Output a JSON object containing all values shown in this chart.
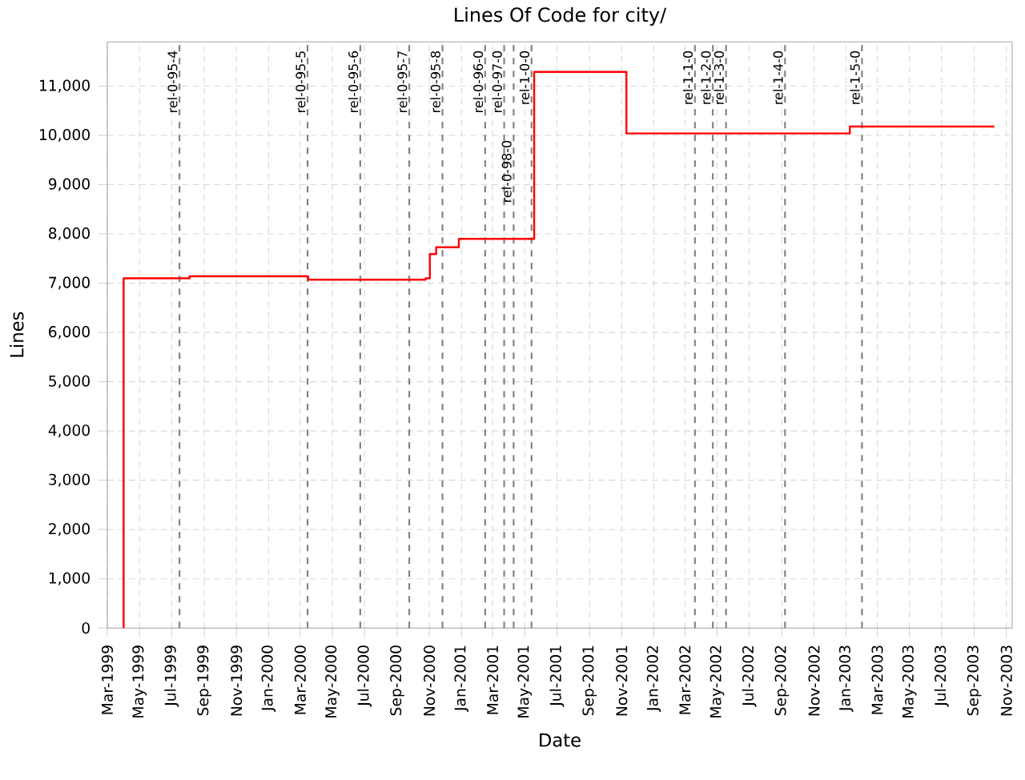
{
  "chart_data": {
    "type": "step",
    "title": "Lines Of Code for city/",
    "xlabel": "Date",
    "ylabel": "Lines",
    "x": [
      "1999-04-01",
      "1999-04-01",
      "1999-08-04",
      "2000-03-16",
      "2000-10-25",
      "2000-11-02",
      "2000-11-14",
      "2000-12-27",
      "2001-05-19",
      "2001-11-10",
      "2003-01-08",
      "2003-10-09"
    ],
    "series": [
      {
        "color": "#ff0000",
        "values": [
          0,
          7100,
          7140,
          7070,
          7100,
          7590,
          7730,
          7900,
          11290,
          10040,
          10180,
          10180
        ]
      }
    ],
    "xlim": [
      "1999-03-01",
      "2003-11-12"
    ],
    "ylim": [
      0,
      11900
    ],
    "xticks": [
      {
        "value": "1999-03",
        "label": "Mar-1999"
      },
      {
        "value": "1999-05",
        "label": "May-1999"
      },
      {
        "value": "1999-07",
        "label": "Jul-1999"
      },
      {
        "value": "1999-09",
        "label": "Sep-1999"
      },
      {
        "value": "1999-11",
        "label": "Nov-1999"
      },
      {
        "value": "2000-01",
        "label": "Jan-2000"
      },
      {
        "value": "2000-03",
        "label": "Mar-2000"
      },
      {
        "value": "2000-05",
        "label": "May-2000"
      },
      {
        "value": "2000-07",
        "label": "Jul-2000"
      },
      {
        "value": "2000-09",
        "label": "Sep-2000"
      },
      {
        "value": "2000-11",
        "label": "Nov-2000"
      },
      {
        "value": "2001-01",
        "label": "Jan-2001"
      },
      {
        "value": "2001-03",
        "label": "Mar-2001"
      },
      {
        "value": "2001-05",
        "label": "May-2001"
      },
      {
        "value": "2001-07",
        "label": "Jul-2001"
      },
      {
        "value": "2001-09",
        "label": "Sep-2001"
      },
      {
        "value": "2001-11",
        "label": "Nov-2001"
      },
      {
        "value": "2002-01",
        "label": "Jan-2002"
      },
      {
        "value": "2002-03",
        "label": "Mar-2002"
      },
      {
        "value": "2002-05",
        "label": "May-2002"
      },
      {
        "value": "2002-07",
        "label": "Jul-2002"
      },
      {
        "value": "2002-09",
        "label": "Sep-2002"
      },
      {
        "value": "2002-11",
        "label": "Nov-2002"
      },
      {
        "value": "2003-01",
        "label": "Jan-2003"
      },
      {
        "value": "2003-03",
        "label": "Mar-2003"
      },
      {
        "value": "2003-05",
        "label": "May-2003"
      },
      {
        "value": "2003-07",
        "label": "Jul-2003"
      },
      {
        "value": "2003-09",
        "label": "Sep-2003"
      },
      {
        "value": "2003-11",
        "label": "Nov-2003"
      }
    ],
    "yticks": [
      0,
      {
        "value": 1000,
        "label": "1,000"
      },
      {
        "value": 2000,
        "label": "2,000"
      },
      {
        "value": 3000,
        "label": "3,000"
      },
      {
        "value": 4000,
        "label": "4,000"
      },
      {
        "value": 5000,
        "label": "5,000"
      },
      {
        "value": 6000,
        "label": "6,000"
      },
      {
        "value": 7000,
        "label": "7,000"
      },
      {
        "value": 8000,
        "label": "8,000"
      },
      {
        "value": 9000,
        "label": "9,000"
      },
      {
        "value": 10000,
        "label": "10,000"
      },
      {
        "value": 11000,
        "label": "11,000"
      }
    ],
    "ref_lines": [
      {
        "axis": "x",
        "value": "1999-07-16",
        "label": "rel-0-95-4",
        "color": "#808080",
        "line_style": "dashed"
      },
      {
        "axis": "x",
        "value": "2000-03-15",
        "label": "rel-0-95-5",
        "color": "#808080",
        "line_style": "dashed"
      },
      {
        "axis": "x",
        "value": "2000-06-23",
        "label": "rel-0-95-6",
        "color": "#808080",
        "line_style": "dashed"
      },
      {
        "axis": "x",
        "value": "2000-09-24",
        "label": "rel-0-95-7",
        "color": "#808080",
        "line_style": "dashed"
      },
      {
        "axis": "x",
        "value": "2000-11-26",
        "label": "rel-0-95-8",
        "color": "#808080",
        "line_style": "dashed"
      },
      {
        "axis": "x",
        "value": "2001-02-15",
        "label": "rel-0-96-0",
        "color": "#808080",
        "line_style": "dashed"
      },
      {
        "axis": "x",
        "value": "2001-03-23",
        "label": "rel-0-97-0",
        "color": "#808080",
        "line_style": "dashed"
      },
      {
        "axis": "x",
        "value": "2001-04-10",
        "label": "rel-0-98-0",
        "color": "#808080",
        "line_style": "dashed"
      },
      {
        "axis": "x",
        "value": "2001-05-14",
        "label": "rel-1-0-0",
        "color": "#808080",
        "line_style": "dashed"
      },
      {
        "axis": "x",
        "value": "2002-03-20",
        "label": "rel-1-1-0",
        "color": "#808080",
        "line_style": "dashed"
      },
      {
        "axis": "x",
        "value": "2002-04-23",
        "label": "rel-1-2-0",
        "color": "#808080",
        "line_style": "dashed"
      },
      {
        "axis": "x",
        "value": "2002-05-18",
        "label": "rel-1-3-0",
        "color": "#808080",
        "line_style": "dashed"
      },
      {
        "axis": "x",
        "value": "2002-09-07",
        "label": "rel-1-4-0",
        "color": "#808080",
        "line_style": "dashed"
      },
      {
        "axis": "x",
        "value": "2003-01-31",
        "label": "rel-1-5-0",
        "color": "#808080",
        "line_style": "dashed"
      }
    ],
    "grid": true,
    "marker": "none",
    "line_style": "solid"
  }
}
